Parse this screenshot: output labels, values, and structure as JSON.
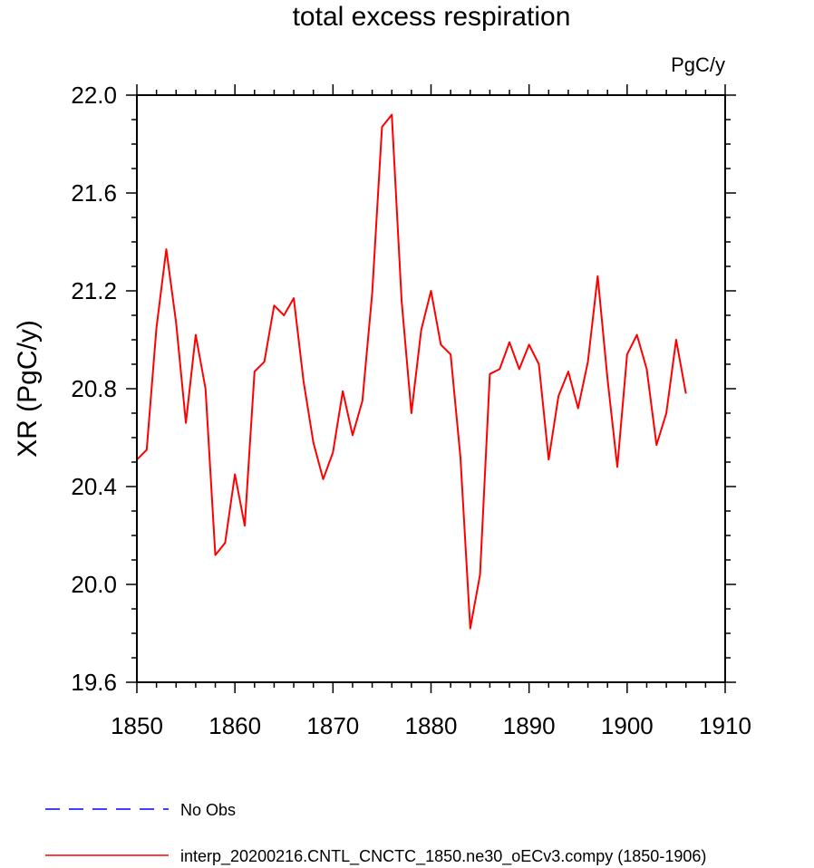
{
  "chart_data": {
    "type": "line",
    "title": "total excess respiration",
    "units_label": "PgC/y",
    "xlabel": "",
    "ylabel": "XR  (PgC/y)",
    "xlim": [
      1850,
      1910
    ],
    "ylim": [
      19.6,
      22.0
    ],
    "xticks": [
      "1850",
      "1860",
      "1870",
      "1880",
      "1890",
      "1900",
      "1910"
    ],
    "yticks": [
      "19.6",
      "20.0",
      "20.4",
      "20.8",
      "21.2",
      "21.6",
      "22.0"
    ],
    "grid": false,
    "legend_position": "bottom-left",
    "series": [
      {
        "name": "No Obs",
        "color": "#0000ff",
        "line_style": "dashed",
        "x": [],
        "values": []
      },
      {
        "name": "interp_20200216.CNTL_CNCTC_1850.ne30_oECv3.compy (1850-1906)",
        "color": "#ff0000",
        "line_style": "solid",
        "x": [
          1850,
          1851,
          1852,
          1853,
          1854,
          1855,
          1856,
          1857,
          1858,
          1859,
          1860,
          1861,
          1862,
          1863,
          1864,
          1865,
          1866,
          1867,
          1868,
          1869,
          1870,
          1871,
          1872,
          1873,
          1874,
          1875,
          1876,
          1877,
          1878,
          1879,
          1880,
          1881,
          1882,
          1883,
          1884,
          1885,
          1886,
          1887,
          1888,
          1889,
          1890,
          1891,
          1892,
          1893,
          1894,
          1895,
          1896,
          1897,
          1898,
          1899,
          1900,
          1901,
          1902,
          1903,
          1904,
          1905,
          1906
        ],
        "values": [
          20.51,
          20.55,
          21.05,
          21.37,
          21.07,
          20.66,
          21.02,
          20.8,
          20.12,
          20.17,
          20.45,
          20.24,
          20.87,
          20.91,
          21.14,
          21.1,
          21.17,
          20.83,
          20.58,
          20.43,
          20.54,
          20.79,
          20.61,
          20.75,
          21.19,
          21.87,
          21.92,
          21.16,
          20.7,
          21.04,
          21.2,
          20.98,
          20.94,
          20.52,
          19.82,
          20.04,
          20.86,
          20.88,
          20.99,
          20.88,
          20.98,
          20.9,
          20.51,
          20.77,
          20.87,
          20.72,
          20.91,
          21.26,
          20.84,
          20.48,
          20.94,
          21.02,
          20.88,
          20.57,
          20.7,
          21.0,
          20.78
        ]
      }
    ]
  }
}
